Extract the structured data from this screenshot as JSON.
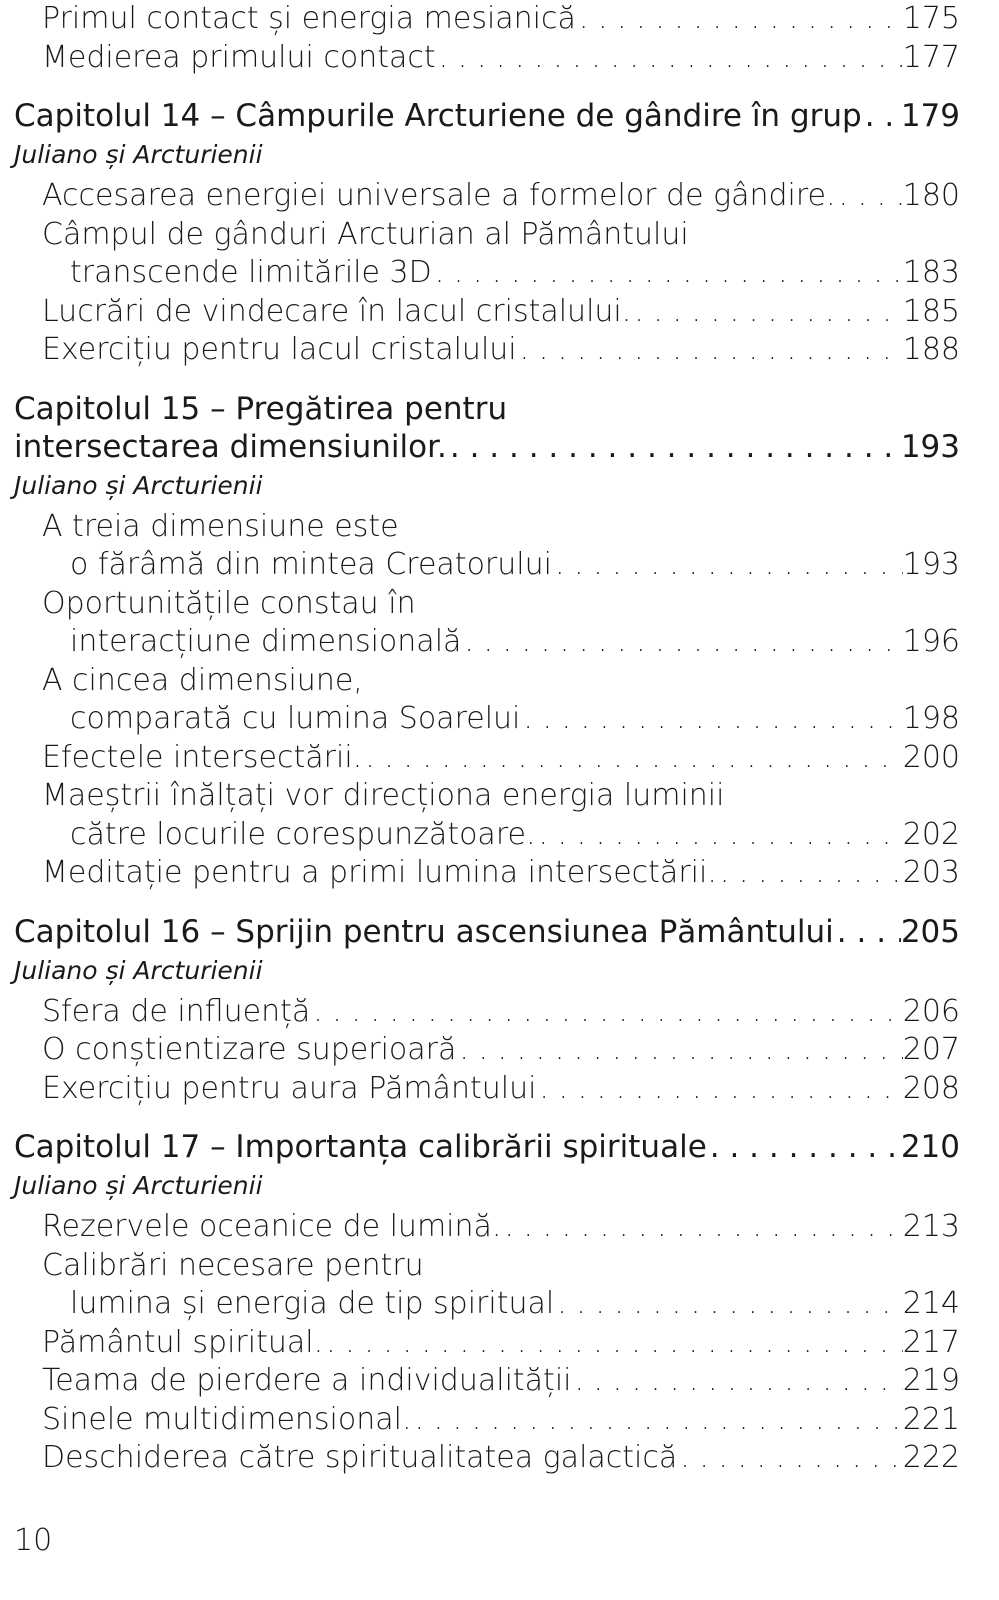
{
  "toc": {
    "top_entries": [
      {
        "title": "Primul contact și energia mesianică",
        "page": "175"
      },
      {
        "title": "Medierea primului contact",
        "page": "177"
      }
    ],
    "chapters": [
      {
        "title": "Capitolul 14 – Câmpurile Arcturiene de gândire în grup",
        "title_line1": "",
        "page": "179",
        "author": "Juliano și Arcturienii",
        "entries": [
          {
            "line1": "",
            "title": "Accesarea energiei universale a formelor de gândire.",
            "page": "180"
          },
          {
            "line1": "Câmpul de gânduri Arcturian al Pământului",
            "title": "transcende limitările 3D",
            "page": "183"
          },
          {
            "line1": "",
            "title": "Lucrări de vindecare în lacul cristalului.",
            "page": "185"
          },
          {
            "line1": "",
            "title": "Exercițiu pentru lacul cristalului",
            "page": "188"
          }
        ]
      },
      {
        "title": "intersectarea dimensiunilor.",
        "title_line1": "Capitolul 15 – Pregătirea pentru",
        "page": "193",
        "author": "Juliano și Arcturienii",
        "entries": [
          {
            "line1": "A treia dimensiune este",
            "title": "o fărâmă din mintea Creatorului",
            "page": "193"
          },
          {
            "line1": "Oportunitățile constau în",
            "title": "interacțiune dimensională",
            "page": "196"
          },
          {
            "line1": "A cincea dimensiune,",
            "title": "comparată cu lumina Soarelui",
            "page": "198"
          },
          {
            "line1": "",
            "title": "Efectele intersectării.",
            "page": "200"
          },
          {
            "line1": "Maeștrii înălțați vor direcționa energia luminii",
            "title": "către locurile corespunzătoare.",
            "page": "202"
          },
          {
            "line1": "",
            "title": "Meditație pentru a primi lumina intersectării.",
            "page": "203"
          }
        ]
      },
      {
        "title": "Capitolul 16 – Sprijin pentru ascensiunea Pământului",
        "title_line1": "",
        "page": "205",
        "author": "Juliano și Arcturienii",
        "entries": [
          {
            "line1": "",
            "title": "Sfera de influență",
            "page": "206"
          },
          {
            "line1": "",
            "title": "O conștientizare superioară",
            "page": "207"
          },
          {
            "line1": "",
            "title": "Exercițiu pentru aura Pământului",
            "page": "208"
          }
        ]
      },
      {
        "title": "Capitolul 17 – Importanța calibrării spirituale",
        "title_line1": "",
        "page": "210",
        "author": "Juliano și Arcturienii",
        "entries": [
          {
            "line1": "",
            "title": "Rezervele oceanice de lumină.",
            "page": "213"
          },
          {
            "line1": "Calibrări necesare pentru",
            "title": "lumina și energia de tip spiritual",
            "page": "214"
          },
          {
            "line1": "",
            "title": "Pământul spiritual.",
            "page": "217"
          },
          {
            "line1": "",
            "title": "Teama de pierdere a individualității",
            "page": "219"
          },
          {
            "line1": "",
            "title": "Sinele multidimensional.",
            "page": "221"
          },
          {
            "line1": "",
            "title": "Deschiderea către spiritualitatea galactică",
            "page": "222"
          }
        ]
      }
    ]
  },
  "page_number": "10"
}
